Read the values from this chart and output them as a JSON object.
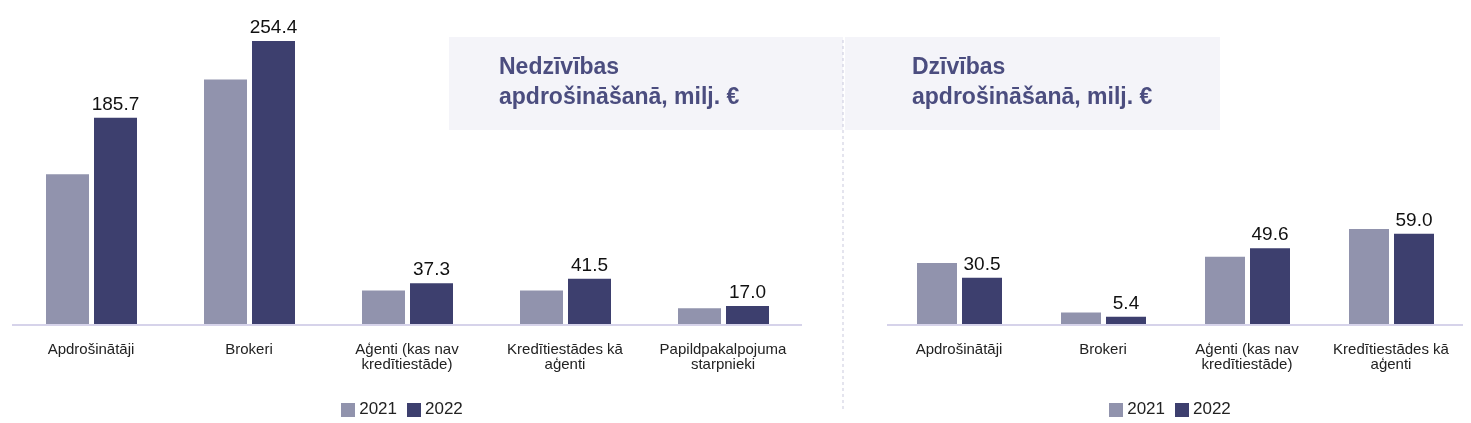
{
  "chart_data": [
    {
      "type": "bar",
      "title": "Nedzīvības apdrošināšanā, milj. €",
      "categories": [
        "Apdrošinātāji",
        "Brokeri",
        "Aģenti (kas nav kredītiestāde)",
        "Kredītiestādes kā aģenti",
        "Papildpakalpojuma starpnieki"
      ],
      "series": [
        {
          "name": "2021",
          "color": "#9193ad",
          "values": [
            135,
            220,
            31,
            31,
            15
          ]
        },
        {
          "name": "2022",
          "color": "#3d3f6e",
          "values": [
            185.7,
            254.4,
            37.3,
            41.5,
            17.0
          ],
          "value_labels": [
            "185.7",
            "254.4",
            "37.3",
            "41.5",
            "17.0"
          ]
        }
      ],
      "legend": "bottom"
    },
    {
      "type": "bar",
      "title": "Dzīvības apdrošināšanā, milj. €",
      "categories": [
        "Apdrošinātāji",
        "Brokeri",
        "Aģenti (kas nav kredītiestāde)",
        "Kredītiestādes kā aģenti"
      ],
      "series": [
        {
          "name": "2021",
          "color": "#9193ad",
          "values": [
            40,
            8,
            44,
            62
          ]
        },
        {
          "name": "2022",
          "color": "#3d3f6e",
          "values": [
            30.5,
            5.4,
            49.6,
            59.0
          ],
          "value_labels": [
            "30.5",
            "5.4",
            "49.6",
            "59.0"
          ]
        }
      ],
      "legend": "bottom"
    }
  ]
}
